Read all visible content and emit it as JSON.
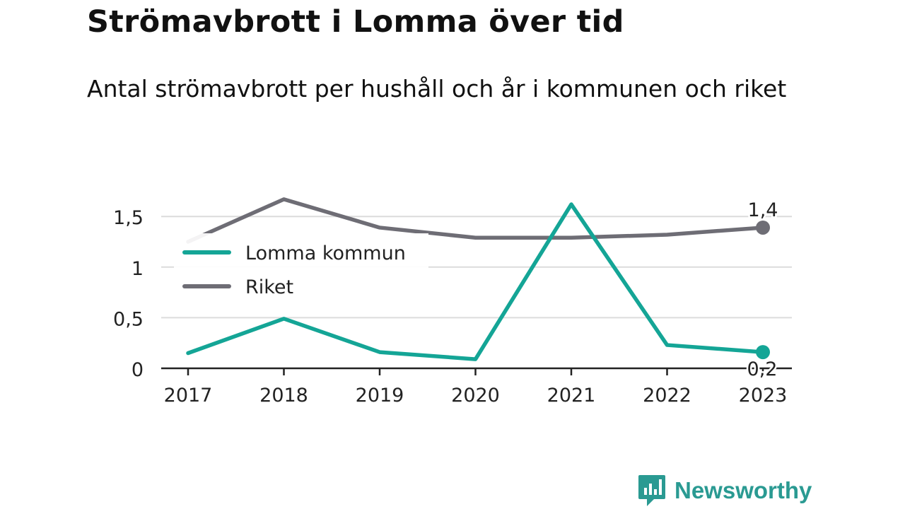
{
  "header": {
    "title": "Strömavbrott i Lomma över tid",
    "subtitle": "Antal strömavbrott per hushåll och år i kommunen och riket"
  },
  "brand": {
    "name": "Newsworthy",
    "icon": "newsworthy-logo-icon",
    "color": "#2a9a92"
  },
  "chart_data": {
    "type": "line",
    "title": "Strömavbrott i Lomma över tid",
    "subtitle": "Antal strömavbrott per hushåll och år i kommunen och riket",
    "x": [
      "2017",
      "2018",
      "2019",
      "2020",
      "2021",
      "2022",
      "2023"
    ],
    "series": [
      {
        "name": "Lomma kommun",
        "color": "#14a596",
        "values": [
          0.15,
          0.49,
          0.16,
          0.09,
          1.62,
          0.23,
          0.16
        ],
        "end_label": "0,2"
      },
      {
        "name": "Riket",
        "color": "#6e6d75",
        "values": [
          1.25,
          1.67,
          1.39,
          1.29,
          1.29,
          1.32,
          1.39
        ],
        "end_label": "1,4"
      }
    ],
    "yticks": [
      0,
      0.5,
      1,
      1.5
    ],
    "ytick_labels": [
      "0",
      "0,5",
      "1",
      "1,5"
    ],
    "ylim": [
      0,
      1.8
    ],
    "xlabel": "",
    "ylabel": "",
    "grid": true,
    "legend": "top-left"
  }
}
